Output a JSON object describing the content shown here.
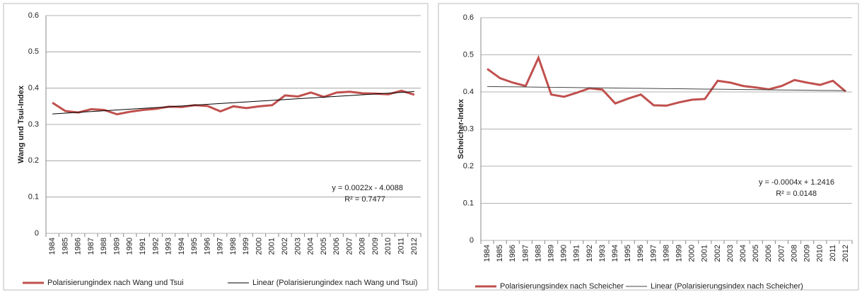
{
  "chart_data": [
    {
      "type": "line",
      "y_label": "Wang und Tsui-Index",
      "categories": [
        "1984",
        "1985",
        "1986",
        "1987",
        "1988",
        "1989",
        "1990",
        "1991",
        "1992",
        "1993",
        "1994",
        "1995",
        "1996",
        "1997",
        "1998",
        "1999",
        "2000",
        "2001",
        "2002",
        "2003",
        "2004",
        "2005",
        "2006",
        "2007",
        "2008",
        "2009",
        "2010",
        "2011",
        "2012"
      ],
      "series": [
        {
          "name": "Polarisierungindex nach Wang und Tsui",
          "color": "#c0504d",
          "width": 3,
          "values": [
            0.36,
            0.337,
            0.333,
            0.342,
            0.34,
            0.328,
            0.335,
            0.34,
            0.343,
            0.349,
            0.348,
            0.353,
            0.351,
            0.336,
            0.35,
            0.345,
            0.35,
            0.353,
            0.38,
            0.377,
            0.388,
            0.376,
            0.388,
            0.39,
            0.386,
            0.385,
            0.383,
            0.393,
            0.382
          ]
        },
        {
          "name": "Linear (Polarisierungindex nach Wang und Tsui)",
          "color": "#000000",
          "width": 1,
          "values": [
            0.329,
            0.3312,
            0.3334,
            0.3356,
            0.3378,
            0.34,
            0.3422,
            0.3444,
            0.3466,
            0.3488,
            0.351,
            0.3532,
            0.3554,
            0.3576,
            0.3598,
            0.362,
            0.3642,
            0.3664,
            0.3686,
            0.3708,
            0.373,
            0.3752,
            0.3774,
            0.3796,
            0.3818,
            0.384,
            0.3862,
            0.3884,
            0.3906
          ]
        }
      ],
      "annotations": [
        "y = 0.0022x - 4.0088",
        "R² = 0.7477"
      ],
      "ylim": [
        0,
        0.6
      ],
      "yticks": [
        0,
        0.1,
        0.2,
        0.3,
        0.4,
        0.5,
        0.6
      ],
      "grid": true
    },
    {
      "type": "line",
      "y_label": "Scheicher-Index",
      "categories": [
        "1984",
        "1985",
        "1986",
        "1987",
        "1988",
        "1989",
        "1990",
        "1991",
        "1992",
        "1993",
        "1994",
        "1995",
        "1996",
        "1997",
        "1998",
        "1999",
        "2000",
        "2001",
        "2002",
        "2003",
        "2004",
        "2005",
        "2006",
        "2007",
        "2008",
        "2009",
        "2010",
        "2011",
        "2012"
      ],
      "series": [
        {
          "name": "Polarisierungsindex nach Scheicher",
          "color": "#c0504d",
          "width": 3,
          "values": [
            0.462,
            0.437,
            0.425,
            0.416,
            0.492,
            0.393,
            0.387,
            0.398,
            0.41,
            0.406,
            0.369,
            0.382,
            0.393,
            0.364,
            0.363,
            0.372,
            0.379,
            0.381,
            0.43,
            0.425,
            0.416,
            0.412,
            0.407,
            0.416,
            0.432,
            0.425,
            0.419,
            0.43,
            0.401
          ]
        },
        {
          "name": "Linear (Polarisierungsindex nach Scheicher)",
          "color": "#444444",
          "width": 1,
          "values": [
            0.4145,
            0.4141,
            0.4137,
            0.4133,
            0.4129,
            0.4125,
            0.4121,
            0.4117,
            0.4113,
            0.4109,
            0.4105,
            0.4101,
            0.4097,
            0.4093,
            0.4089,
            0.4085,
            0.4081,
            0.4077,
            0.4073,
            0.4069,
            0.4065,
            0.4061,
            0.4057,
            0.4053,
            0.4049,
            0.4045,
            0.4041,
            0.4037,
            0.4033
          ]
        }
      ],
      "annotations": [
        "y = -0.0004x + 1.2416",
        "R² = 0.0148"
      ],
      "ylim": [
        0,
        0.6
      ],
      "yticks": [
        0,
        0.1,
        0.2,
        0.3,
        0.4,
        0.5,
        0.6
      ],
      "grid": true
    }
  ]
}
